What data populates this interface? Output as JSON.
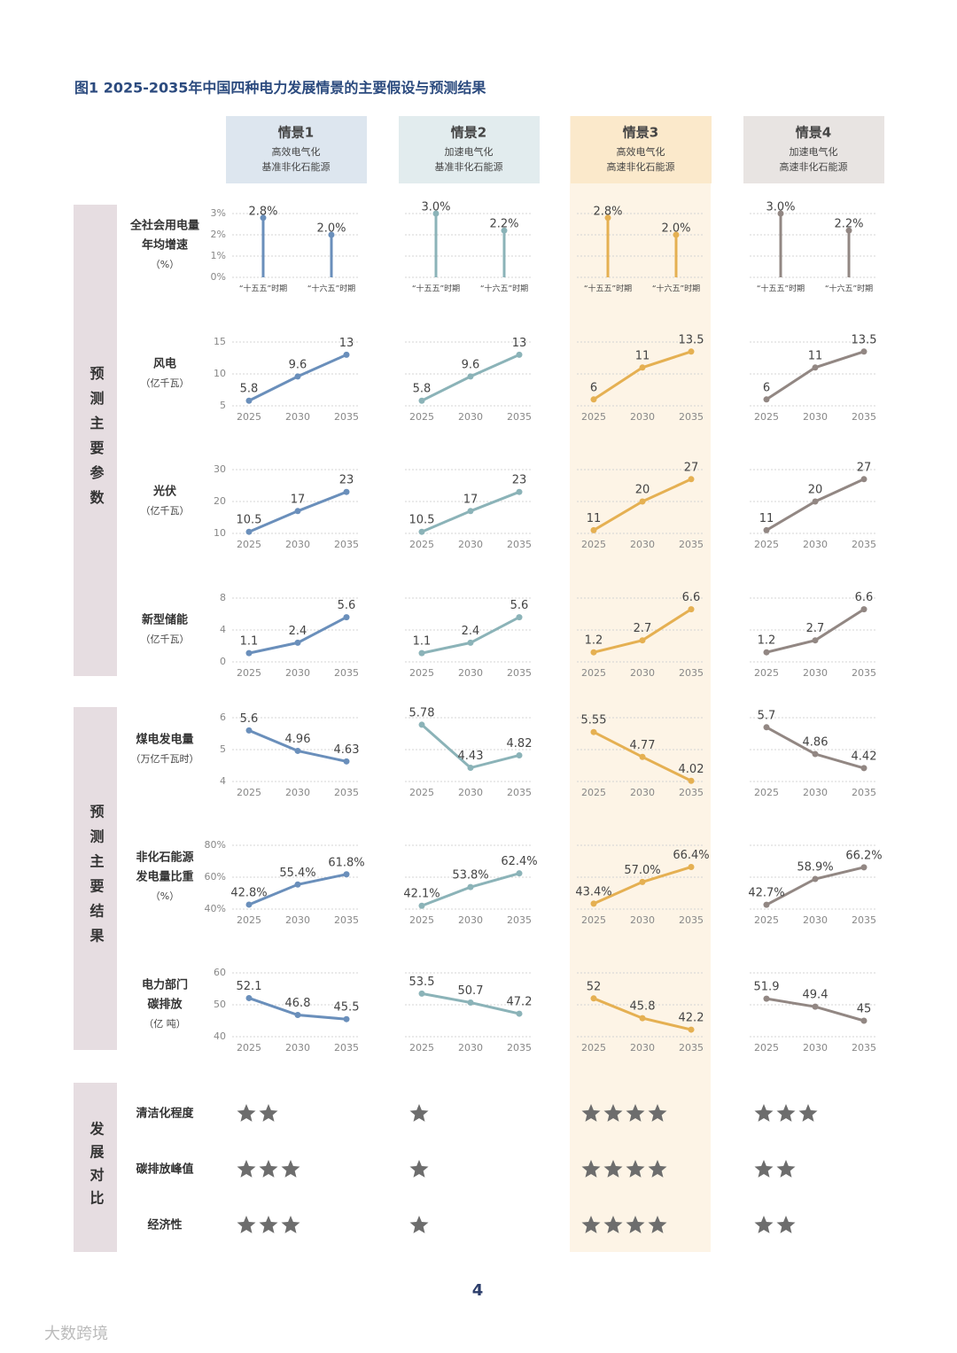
{
  "title": "图1 2025-2035年中国四种电力发展情景的主要假设与预测结果",
  "scenarios": [
    {
      "name": "情景1",
      "line1": "高效电气化",
      "line2": "基准非化石能源"
    },
    {
      "name": "情景2",
      "line1": "加速电气化",
      "line2": "基准非化石能源"
    },
    {
      "name": "情景3",
      "line1": "高效电气化",
      "line2": "高速非化石能源"
    },
    {
      "name": "情景4",
      "line1": "加速电气化",
      "line2": "高速非化石能源"
    }
  ],
  "groups": [
    "预测主要参数",
    "预测主要结果",
    "发展对比"
  ],
  "rows": [
    {
      "lines": [
        "全社会用电量",
        "年均增速"
      ],
      "unit": "（%）"
    },
    {
      "lines": [
        "风电"
      ],
      "unit": "（亿千瓦）"
    },
    {
      "lines": [
        "光伏"
      ],
      "unit": "（亿千瓦）"
    },
    {
      "lines": [
        "新型储能"
      ],
      "unit": "（亿千瓦）"
    },
    {
      "lines": [
        "煤电发电量"
      ],
      "unit": "（万亿千瓦时）"
    },
    {
      "lines": [
        "非化石能源",
        "发电量比重"
      ],
      "unit": "（%）"
    },
    {
      "lines": [
        "电力部门",
        "碳排放"
      ],
      "unit": "（亿 吨）"
    }
  ],
  "ratings": [
    {
      "label": "清洁化程度",
      "values": [
        2,
        1,
        4,
        3
      ]
    },
    {
      "label": "碳排放峰值",
      "values": [
        3,
        1,
        4,
        2
      ]
    },
    {
      "label": "经济性",
      "values": [
        3,
        1,
        4,
        2
      ]
    }
  ],
  "page_number": "4",
  "watermark": "大数跨境",
  "chart_data": [
    {
      "type": "lollipop",
      "categories": [
        "“十五五”时期",
        "“十六五”时期"
      ],
      "values": [
        2.8,
        2.0
      ],
      "value_labels": [
        "2.8%",
        "2.0%"
      ],
      "color": "#6a8fbb",
      "ylim": [
        0,
        3
      ],
      "yticks": [
        {
          "value": 0,
          "label": "0%"
        },
        {
          "value": 1,
          "label": "1%"
        },
        {
          "value": 2,
          "label": "2%"
        },
        {
          "value": 3,
          "label": "3%"
        }
      ],
      "grid": true,
      "tick_labels": true
    },
    {
      "type": "lollipop",
      "categories": [
        "“十五五”时期",
        "“十六五”时期"
      ],
      "values": [
        3.0,
        2.2
      ],
      "value_labels": [
        "3.0%",
        "2.2%"
      ],
      "color": "#8bb3b8",
      "ylim": [
        0,
        3
      ],
      "yticks": [
        0,
        1,
        2,
        3
      ],
      "grid": true,
      "tick_labels": false
    },
    {
      "type": "lollipop",
      "categories": [
        "“十五五”时期",
        "“十六五”时期"
      ],
      "values": [
        2.8,
        2.0
      ],
      "value_labels": [
        "2.8%",
        "2.0%"
      ],
      "color": "#e5b052",
      "ylim": [
        0,
        3
      ],
      "yticks": [
        0,
        1,
        2,
        3
      ],
      "grid": true,
      "tick_labels": false
    },
    {
      "type": "lollipop",
      "categories": [
        "“十五五”时期",
        "“十六五”时期"
      ],
      "values": [
        3.0,
        2.2
      ],
      "value_labels": [
        "3.0%",
        "2.2%"
      ],
      "color": "#928783",
      "ylim": [
        0,
        3
      ],
      "yticks": [
        0,
        1,
        2,
        3
      ],
      "grid": true,
      "tick_labels": false
    },
    {
      "type": "line",
      "categories": [
        "2025",
        "2030",
        "2035"
      ],
      "values": [
        5.8,
        9.6,
        13
      ],
      "color": "#6a8fbb",
      "ylim": [
        5,
        15
      ],
      "yticks": [
        5,
        10,
        15
      ],
      "grid": true,
      "tick_labels": true
    },
    {
      "type": "line",
      "categories": [
        "2025",
        "2030",
        "2035"
      ],
      "values": [
        5.8,
        9.6,
        13
      ],
      "color": "#8bb3b8",
      "ylim": [
        5,
        15
      ],
      "yticks": [
        5,
        10,
        15
      ],
      "grid": true,
      "tick_labels": false
    },
    {
      "type": "line",
      "categories": [
        "2025",
        "2030",
        "2035"
      ],
      "values": [
        6,
        11,
        13.5
      ],
      "color": "#e5b052",
      "ylim": [
        5,
        15
      ],
      "yticks": [
        5,
        10,
        15
      ],
      "grid": true,
      "tick_labels": false
    },
    {
      "type": "line",
      "categories": [
        "2025",
        "2030",
        "2035"
      ],
      "values": [
        6,
        11,
        13.5
      ],
      "color": "#928783",
      "ylim": [
        5,
        15
      ],
      "yticks": [
        5,
        10,
        15
      ],
      "grid": true,
      "tick_labels": false
    },
    {
      "type": "line",
      "categories": [
        "2025",
        "2030",
        "2035"
      ],
      "values": [
        10.5,
        17,
        23
      ],
      "color": "#6a8fbb",
      "ylim": [
        10,
        30
      ],
      "yticks": [
        10,
        20,
        30
      ],
      "grid": true,
      "tick_labels": true
    },
    {
      "type": "line",
      "categories": [
        "2025",
        "2030",
        "2035"
      ],
      "values": [
        10.5,
        17,
        23
      ],
      "color": "#8bb3b8",
      "ylim": [
        10,
        30
      ],
      "yticks": [
        10,
        20,
        30
      ],
      "grid": true,
      "tick_labels": false
    },
    {
      "type": "line",
      "categories": [
        "2025",
        "2030",
        "2035"
      ],
      "values": [
        11,
        20,
        27
      ],
      "color": "#e5b052",
      "ylim": [
        10,
        30
      ],
      "yticks": [
        10,
        20,
        30
      ],
      "grid": true,
      "tick_labels": false
    },
    {
      "type": "line",
      "categories": [
        "2025",
        "2030",
        "2035"
      ],
      "values": [
        11,
        20,
        27
      ],
      "color": "#928783",
      "ylim": [
        10,
        30
      ],
      "yticks": [
        10,
        20,
        30
      ],
      "grid": true,
      "tick_labels": false
    },
    {
      "type": "line",
      "categories": [
        "2025",
        "2030",
        "2035"
      ],
      "values": [
        1.1,
        2.4,
        5.6
      ],
      "color": "#6a8fbb",
      "ylim": [
        0,
        8
      ],
      "yticks": [
        0,
        4,
        8
      ],
      "grid": true,
      "tick_labels": true
    },
    {
      "type": "line",
      "categories": [
        "2025",
        "2030",
        "2035"
      ],
      "values": [
        1.1,
        2.4,
        5.6
      ],
      "color": "#8bb3b8",
      "ylim": [
        0,
        8
      ],
      "yticks": [
        0,
        4,
        8
      ],
      "grid": true,
      "tick_labels": false
    },
    {
      "type": "line",
      "categories": [
        "2025",
        "2030",
        "2035"
      ],
      "values": [
        1.2,
        2.7,
        6.6
      ],
      "color": "#e5b052",
      "ylim": [
        0,
        8
      ],
      "yticks": [
        0,
        4,
        8
      ],
      "grid": true,
      "tick_labels": false
    },
    {
      "type": "line",
      "categories": [
        "2025",
        "2030",
        "2035"
      ],
      "values": [
        1.2,
        2.7,
        6.6
      ],
      "color": "#928783",
      "ylim": [
        0,
        8
      ],
      "yticks": [
        0,
        4,
        8
      ],
      "grid": true,
      "tick_labels": false
    },
    {
      "type": "line",
      "categories": [
        "2025",
        "2030",
        "2035"
      ],
      "values": [
        5.6,
        4.96,
        4.63
      ],
      "color": "#6a8fbb",
      "ylim": [
        4,
        6
      ],
      "yticks": [
        4,
        5,
        6
      ],
      "grid": true,
      "tick_labels": true
    },
    {
      "type": "line",
      "categories": [
        "2025",
        "2030",
        "2035"
      ],
      "values": [
        5.78,
        4.43,
        4.82
      ],
      "color": "#8bb3b8",
      "ylim": [
        4,
        6
      ],
      "yticks": [
        4,
        5,
        6
      ],
      "grid": true,
      "tick_labels": false
    },
    {
      "type": "line",
      "categories": [
        "2025",
        "2030",
        "2035"
      ],
      "values": [
        5.55,
        4.77,
        4.02
      ],
      "color": "#e5b052",
      "ylim": [
        4,
        6
      ],
      "yticks": [
        4,
        5,
        6
      ],
      "grid": true,
      "tick_labels": false
    },
    {
      "type": "line",
      "categories": [
        "2025",
        "2030",
        "2035"
      ],
      "values": [
        5.7,
        4.86,
        4.42
      ],
      "color": "#928783",
      "ylim": [
        4,
        6
      ],
      "yticks": [
        4,
        5,
        6
      ],
      "grid": true,
      "tick_labels": false
    },
    {
      "type": "line",
      "categories": [
        "2025",
        "2030",
        "2035"
      ],
      "values": [
        42.8,
        55.4,
        61.8
      ],
      "value_labels": [
        "42.8%",
        "55.4%",
        "61.8%"
      ],
      "color": "#6a8fbb",
      "ylim": [
        40,
        80
      ],
      "yticks": [
        {
          "value": 40,
          "label": "40%"
        },
        {
          "value": 60,
          "label": "60%"
        },
        {
          "value": 80,
          "label": "80%"
        }
      ],
      "grid": true,
      "tick_labels": true
    },
    {
      "type": "line",
      "categories": [
        "2025",
        "2030",
        "2035"
      ],
      "values": [
        42.1,
        53.8,
        62.4
      ],
      "value_labels": [
        "42.1%",
        "53.8%",
        "62.4%"
      ],
      "color": "#8bb3b8",
      "ylim": [
        40,
        80
      ],
      "yticks": [
        40,
        60,
        80
      ],
      "grid": true,
      "tick_labels": false
    },
    {
      "type": "line",
      "categories": [
        "2025",
        "2030",
        "2035"
      ],
      "values": [
        43.4,
        57.0,
        66.4
      ],
      "value_labels": [
        "43.4%",
        "57.0%",
        "66.4%"
      ],
      "color": "#e5b052",
      "ylim": [
        40,
        80
      ],
      "yticks": [
        40,
        60,
        80
      ],
      "grid": true,
      "tick_labels": false
    },
    {
      "type": "line",
      "categories": [
        "2025",
        "2030",
        "2035"
      ],
      "values": [
        42.7,
        58.9,
        66.2
      ],
      "value_labels": [
        "42.7%",
        "58.9%",
        "66.2%"
      ],
      "color": "#928783",
      "ylim": [
        40,
        80
      ],
      "yticks": [
        40,
        60,
        80
      ],
      "grid": true,
      "tick_labels": false
    },
    {
      "type": "line",
      "categories": [
        "2025",
        "2030",
        "2035"
      ],
      "values": [
        52.1,
        46.8,
        45.5
      ],
      "color": "#6a8fbb",
      "ylim": [
        40,
        60
      ],
      "yticks": [
        40,
        50,
        60
      ],
      "grid": true,
      "tick_labels": true
    },
    {
      "type": "line",
      "categories": [
        "2025",
        "2030",
        "2035"
      ],
      "values": [
        53.5,
        50.7,
        47.2
      ],
      "color": "#8bb3b8",
      "ylim": [
        40,
        60
      ],
      "yticks": [
        40,
        50,
        60
      ],
      "grid": true,
      "tick_labels": false
    },
    {
      "type": "line",
      "categories": [
        "2025",
        "2030",
        "2035"
      ],
      "values": [
        52,
        45.8,
        42.2
      ],
      "color": "#e5b052",
      "ylim": [
        40,
        60
      ],
      "yticks": [
        40,
        50,
        60
      ],
      "grid": true,
      "tick_labels": false
    },
    {
      "type": "line",
      "categories": [
        "2025",
        "2030",
        "2035"
      ],
      "values": [
        51.9,
        49.4,
        45
      ],
      "color": "#928783",
      "ylim": [
        40,
        60
      ],
      "yticks": [
        40,
        50,
        60
      ],
      "grid": true,
      "tick_labels": false
    }
  ]
}
